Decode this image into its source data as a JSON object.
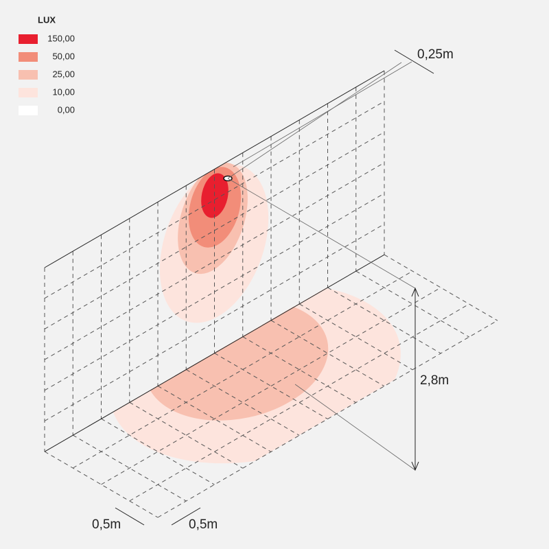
{
  "legend": {
    "title": "LUX",
    "items": [
      {
        "label": "150,00",
        "color": "#e81f2f"
      },
      {
        "label": "50,00",
        "color": "#f28d79"
      },
      {
        "label": "25,00",
        "color": "#f8c0b0"
      },
      {
        "label": "10,00",
        "color": "#fde4dd"
      },
      {
        "label": "0,00",
        "color": "#ffffff"
      }
    ]
  },
  "dimensions": {
    "offset": "0,25m",
    "height": "2,8m",
    "grid_depth": "0,5m",
    "grid_width": "0,5m"
  }
}
